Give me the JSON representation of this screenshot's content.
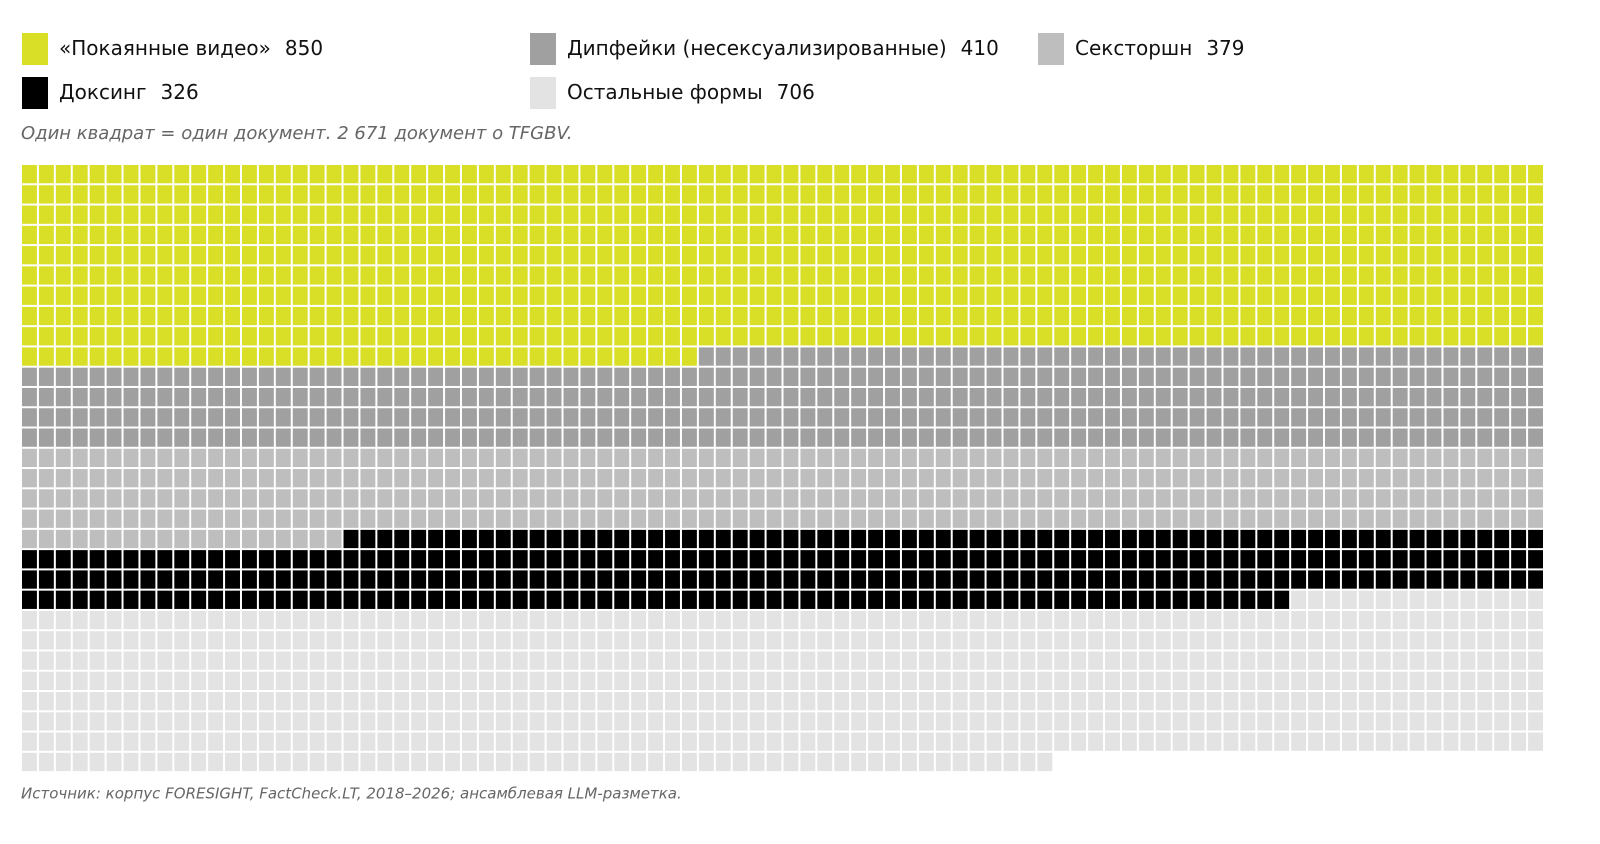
{
  "chart_data": {
    "type": "waffle",
    "subtitle": "Один квадрат = один документ. 2 671 документ о TFGBV.",
    "source": "Источник: корпус FORESIGHT, FactCheck.LT, 2018–2026; ансамблевая LLM-разметка.",
    "series": [
      {
        "name": "«Покаянные видео»",
        "color": "#d9df26",
        "value": 850
      },
      {
        "name": "Дипфейки (несексуализированные)",
        "color": "#a0a0a0",
        "value": 410
      },
      {
        "name": "Сексторшн",
        "color": "#bebebe",
        "value": 379
      },
      {
        "name": "Доксинг",
        "color": "#000000",
        "value": 326
      },
      {
        "name": "Остальные формы",
        "color": "#e3e3e3",
        "value": 706
      }
    ]
  }
}
